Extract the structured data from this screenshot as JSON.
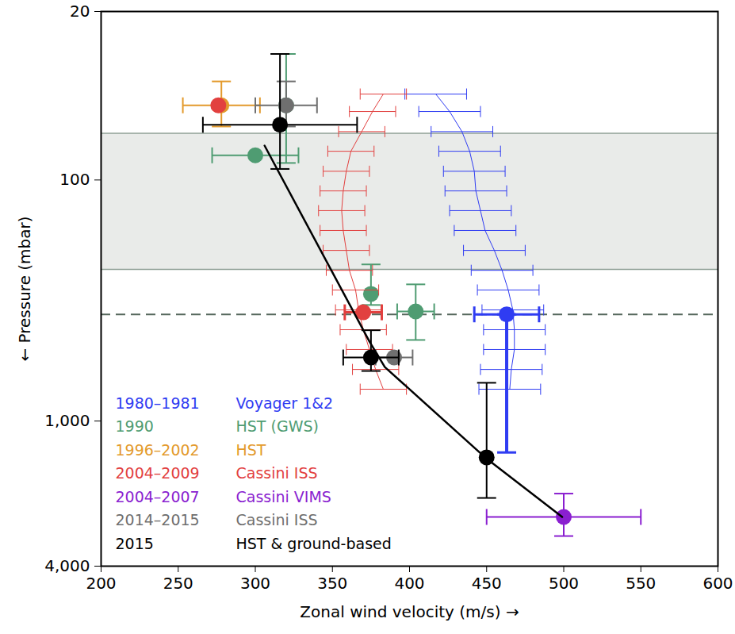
{
  "chart_data": {
    "type": "scatter",
    "xlabel": "Zonal wind velocity (m/s)",
    "ylabel": "Pressure (mbar)",
    "xlim": [
      200,
      600
    ],
    "ylim": [
      4000,
      20
    ],
    "log": "y",
    "xticks": [
      200,
      250,
      300,
      350,
      400,
      450,
      500,
      550,
      600
    ],
    "yticks": [
      20,
      100,
      {
        "value": 1000,
        "label": "1,000"
      },
      {
        "value": 4000,
        "label": "4,000"
      }
    ],
    "shaded_band": [
      64,
      235
    ],
    "reference_line": 361,
    "legend": "bottom-left",
    "series": [
      {
        "name": "Voyager 1&2",
        "period": "1980–1981",
        "color": "#2f3cf2",
        "profile": {
          "x": [
            417,
            426,
            434,
            439,
            442,
            443,
            446,
            449,
            455,
            460,
            464,
            467,
            468,
            468,
            466,
            465
          ],
          "y": [
            44,
            52,
            63,
            76,
            92,
            111,
            134,
            162,
            196,
            237,
            286,
            346,
            418,
            505,
            611,
            738
          ],
          "xerr": 20
        },
        "points": {
          "x": [
            463
          ],
          "y": [
            361
          ],
          "xerr": [
            21
          ],
          "yerr_range": [
            [
              361,
              1350
            ]
          ]
        }
      },
      {
        "name": "HST (GWS)",
        "period": "1990",
        "color": "#4f9c72",
        "points": {
          "x": [
            300,
            320,
            375,
            404
          ],
          "y": [
            79,
            49,
            297,
            351
          ],
          "xerr": [
            28,
            null,
            null,
            12
          ],
          "yerr_range": [
            null,
            [
              30,
              85
            ],
            [
              224,
              330
            ],
            [
              271,
              461
            ]
          ]
        }
      },
      {
        "name": "HST",
        "period": "1996–2002",
        "color": "#e39a2c",
        "points": {
          "x": [
            278
          ],
          "y": [
            49
          ],
          "xerr": [
            25
          ],
          "yerr_range": [
            [
              39,
              60
            ]
          ]
        }
      },
      {
        "name": "Cassini ISS",
        "period": "2004–2009",
        "color": "#e2403f",
        "profile": {
          "x": [
            383,
            376,
            369,
            362,
            359,
            357,
            356,
            357,
            359,
            361,
            365,
            367,
            370,
            374,
            378,
            383
          ],
          "y": [
            44,
            52,
            63,
            76,
            92,
            111,
            134,
            162,
            196,
            237,
            286,
            346,
            418,
            505,
            611,
            738
          ],
          "xerr": 15
        },
        "points": {
          "x": [
            276,
            370
          ],
          "y": [
            49,
            354
          ],
          "xerr": [
            null,
            12
          ],
          "yerr_range": [
            null,
            null
          ]
        }
      },
      {
        "name": "Cassini VIMS",
        "period": "2004–2007",
        "color": "#8a1fd0",
        "points": {
          "x": [
            500
          ],
          "y": [
            2500
          ],
          "xerr": [
            50
          ],
          "yerr_range": [
            [
              2000,
              3000
            ]
          ]
        }
      },
      {
        "name": "Cassini ISS",
        "period": "2014–2015",
        "color": "#6f6f6f",
        "points": {
          "x": [
            320,
            390
          ],
          "y": [
            49,
            545
          ],
          "xerr": [
            20,
            12
          ],
          "yerr_range": [
            [
              39,
              60
            ],
            null
          ]
        }
      },
      {
        "name": "HST & ground-based",
        "period": "2015",
        "color": "#000000",
        "line": {
          "x": [
            306,
            374,
            384,
            449,
            499
          ],
          "y": [
            72,
            468,
            597,
            1415,
            2500
          ]
        },
        "points": {
          "x": [
            316,
            375,
            450
          ],
          "y": [
            59,
            545,
            1415
          ],
          "xerr": [
            50,
            18,
            null
          ],
          "yerr_range": [
            [
              30,
              90
            ],
            [
              420,
              620
            ],
            [
              694,
              2085
            ]
          ]
        }
      }
    ]
  }
}
